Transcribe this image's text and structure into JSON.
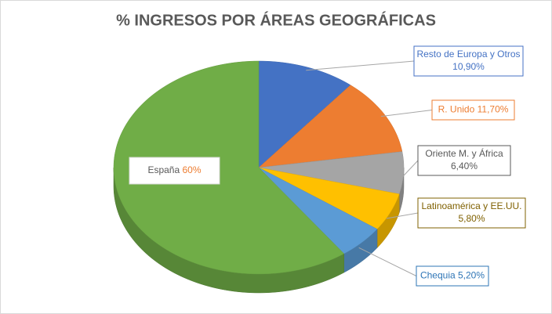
{
  "chart_data": {
    "type": "pie",
    "title": "% INGRESOS POR ÁREAS GEOGRÁFICAS",
    "categories": [
      "Resto de Europa y Otros",
      "R. Unido",
      "Oriente M. y África",
      "Latinoamérica y EE.UU.",
      "Chequia",
      "España"
    ],
    "values": [
      10.9,
      11.7,
      6.4,
      5.8,
      5.2,
      60
    ],
    "value_labels": [
      "10,90%",
      "11,70%",
      "6,40%",
      "5,80%",
      "5,20%",
      "60%"
    ],
    "colors": [
      "#4472c4",
      "#ed7d31",
      "#a5a5a5",
      "#ffc000",
      "#5b9bd5",
      "#70ad47"
    ],
    "label_colors": [
      "#4472c4",
      "#ed7d31",
      "#595959",
      "#7f6000",
      "#2e75b6",
      "#595959"
    ],
    "three_d": true
  }
}
